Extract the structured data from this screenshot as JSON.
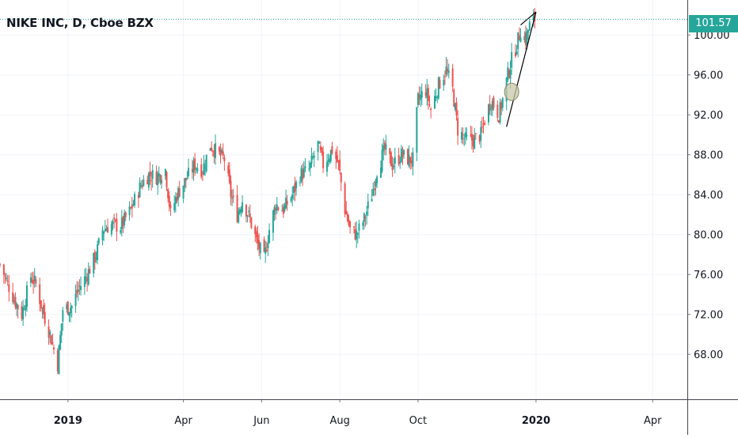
{
  "chart_data": {
    "type": "candlestick",
    "title": "NIKE INC, D, Cboe BZX",
    "last_price_label": "101.57",
    "last_price": 101.57,
    "y_ticks": [
      68,
      72,
      76,
      80,
      84,
      88,
      92,
      96,
      100
    ],
    "y_tick_labels": [
      "68.00",
      "72.00",
      "76.00",
      "80.00",
      "84.00",
      "88.00",
      "92.00",
      "96.00",
      "100.00"
    ],
    "ylim": [
      63.5,
      103.5
    ],
    "x_ticks": [
      {
        "label": "2019",
        "date": "2019-01-01",
        "bold": true
      },
      {
        "label": "Apr",
        "date": "2019-04-01",
        "bold": false
      },
      {
        "label": "Jun",
        "date": "2019-06-01",
        "bold": false
      },
      {
        "label": "Aug",
        "date": "2019-08-01",
        "bold": false
      },
      {
        "label": "Oct",
        "date": "2019-10-01",
        "bold": false
      },
      {
        "label": "2020",
        "date": "2020-01-01",
        "bold": true
      },
      {
        "label": "Apr",
        "date": "2020-04-01",
        "bold": false
      }
    ],
    "xlim": [
      "2018-11-09",
      "2020-04-28"
    ],
    "grid": true,
    "colors": {
      "up": "#26a69a",
      "down": "#ef5350",
      "grid": "#f0f3fa",
      "price_line": "#26a69a",
      "axis_text": "#131722",
      "trendline": "#000000",
      "highlight": "#c8c8a8"
    },
    "close_path": [
      [
        "2018-11-09",
        77.0
      ],
      [
        "2018-11-20",
        73.5
      ],
      [
        "2018-11-26",
        72.0
      ],
      [
        "2018-12-03",
        75.8
      ],
      [
        "2018-12-07",
        75.0
      ],
      [
        "2018-12-12",
        72.5
      ],
      [
        "2018-12-18",
        70.0
      ],
      [
        "2018-12-24",
        67.0
      ],
      [
        "2018-12-28",
        72.5
      ],
      [
        "2019-01-04",
        72.8
      ],
      [
        "2019-01-09",
        74.5
      ],
      [
        "2019-01-16",
        76.0
      ],
      [
        "2019-01-23",
        78.0
      ],
      [
        "2019-01-28",
        80.5
      ],
      [
        "2019-02-04",
        81.0
      ],
      [
        "2019-02-11",
        80.8
      ],
      [
        "2019-02-19",
        82.5
      ],
      [
        "2019-02-27",
        85.0
      ],
      [
        "2019-03-05",
        86.0
      ],
      [
        "2019-03-11",
        85.8
      ],
      [
        "2019-03-18",
        86.5
      ],
      [
        "2019-03-22",
        82.0
      ],
      [
        "2019-03-27",
        84.0
      ],
      [
        "2019-04-03",
        85.5
      ],
      [
        "2019-04-10",
        87.0
      ],
      [
        "2019-04-16",
        86.5
      ],
      [
        "2019-04-22",
        89.0
      ],
      [
        "2019-04-29",
        88.0
      ],
      [
        "2019-05-03",
        87.5
      ],
      [
        "2019-05-08",
        84.0
      ],
      [
        "2019-05-13",
        82.0
      ],
      [
        "2019-05-17",
        83.5
      ],
      [
        "2019-05-23",
        81.5
      ],
      [
        "2019-05-29",
        79.0
      ],
      [
        "2019-06-03",
        77.5
      ],
      [
        "2019-06-07",
        80.5
      ],
      [
        "2019-06-12",
        83.0
      ],
      [
        "2019-06-18",
        82.5
      ],
      [
        "2019-06-25",
        84.0
      ],
      [
        "2019-07-01",
        86.0
      ],
      [
        "2019-07-08",
        86.5
      ],
      [
        "2019-07-15",
        89.0
      ],
      [
        "2019-07-19",
        87.0
      ],
      [
        "2019-07-26",
        88.5
      ],
      [
        "2019-07-31",
        87.0
      ],
      [
        "2019-08-05",
        82.5
      ],
      [
        "2019-08-09",
        80.5
      ],
      [
        "2019-08-14",
        80.0
      ],
      [
        "2019-08-20",
        81.5
      ],
      [
        "2019-08-26",
        84.0
      ],
      [
        "2019-08-30",
        86.5
      ],
      [
        "2019-09-05",
        88.5
      ],
      [
        "2019-09-11",
        87.0
      ],
      [
        "2019-09-18",
        88.0
      ],
      [
        "2019-09-24",
        87.5
      ],
      [
        "2019-09-27",
        87.5
      ],
      [
        "2019-10-01",
        93.5
      ],
      [
        "2019-10-07",
        94.5
      ],
      [
        "2019-10-11",
        92.5
      ],
      [
        "2019-10-17",
        95.0
      ],
      [
        "2019-10-23",
        96.5
      ],
      [
        "2019-10-28",
        94.5
      ],
      [
        "2019-11-01",
        90.5
      ],
      [
        "2019-11-07",
        89.5
      ],
      [
        "2019-11-13",
        89.5
      ],
      [
        "2019-11-19",
        90.0
      ],
      [
        "2019-11-22",
        91.5
      ],
      [
        "2019-11-27",
        93.5
      ],
      [
        "2019-12-03",
        92.0
      ],
      [
        "2019-12-06",
        93.5
      ],
      [
        "2019-12-10",
        96.0
      ],
      [
        "2019-12-13",
        97.5
      ],
      [
        "2019-12-17",
        99.0
      ],
      [
        "2019-12-20",
        100.5
      ],
      [
        "2019-12-24",
        99.5
      ],
      [
        "2019-12-27",
        101.0
      ],
      [
        "2019-12-31",
        101.57
      ]
    ],
    "annotations": [
      {
        "type": "trendline",
        "from": [
          "2019-12-09",
          90.8
        ],
        "to": [
          "2020-01-01",
          102.3
        ]
      },
      {
        "type": "trendline",
        "from": [
          "2019-12-20",
          101.0
        ],
        "to": [
          "2020-01-01",
          102.3
        ]
      },
      {
        "type": "circle",
        "at": [
          "2019-12-13",
          94.3
        ]
      }
    ]
  }
}
